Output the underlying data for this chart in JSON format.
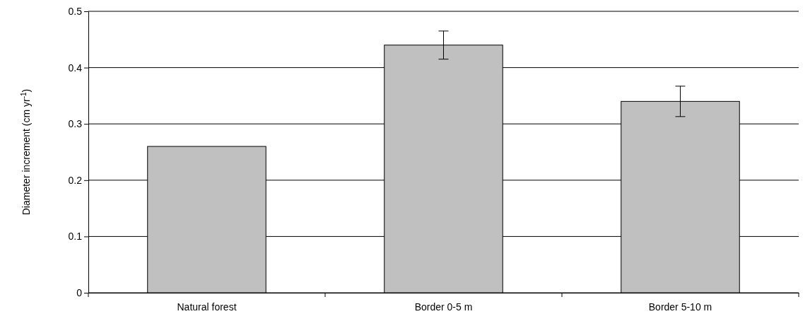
{
  "chart_data": {
    "type": "bar",
    "ylabel": "Diameter increment (cm yr$^{-1}$)",
    "categories": [
      "Natural forest",
      "Border 0-5 m",
      "Border 5-10 m"
    ],
    "values": [
      0.26,
      0.44,
      0.34
    ],
    "errors": [
      null,
      0.025,
      0.027
    ],
    "color": "#c0c0c0",
    "ylim": [
      0,
      0.5
    ],
    "yticks": [
      0,
      0.1,
      0.2,
      0.3,
      0.4,
      0.5
    ],
    "grid": "y"
  }
}
